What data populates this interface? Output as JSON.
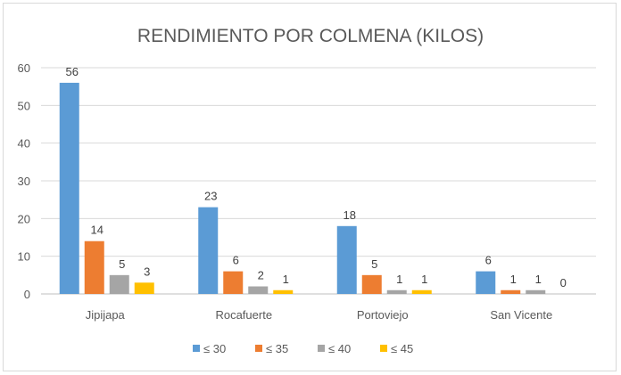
{
  "chart_data": {
    "type": "bar",
    "title": "RENDIMIENTO POR COLMENA (KILOS)",
    "categories": [
      "Jipijapa",
      "Rocafuerte",
      "Portoviejo",
      "San Vicente"
    ],
    "series": [
      {
        "name": "≤ 30",
        "color": "#5b9bd5",
        "values": [
          56,
          23,
          18,
          6
        ]
      },
      {
        "name": "≤ 35",
        "color": "#ed7d31",
        "values": [
          14,
          6,
          5,
          1
        ]
      },
      {
        "name": "≤ 40",
        "color": "#a5a5a5",
        "values": [
          5,
          2,
          1,
          1
        ]
      },
      {
        "name": "≤ 45",
        "color": "#ffc000",
        "values": [
          3,
          1,
          1,
          0
        ]
      }
    ],
    "ylim": [
      0,
      60
    ],
    "yticks": [
      0,
      10,
      20,
      30,
      40,
      50,
      60
    ],
    "grid": true,
    "legend_position": "bottom"
  }
}
